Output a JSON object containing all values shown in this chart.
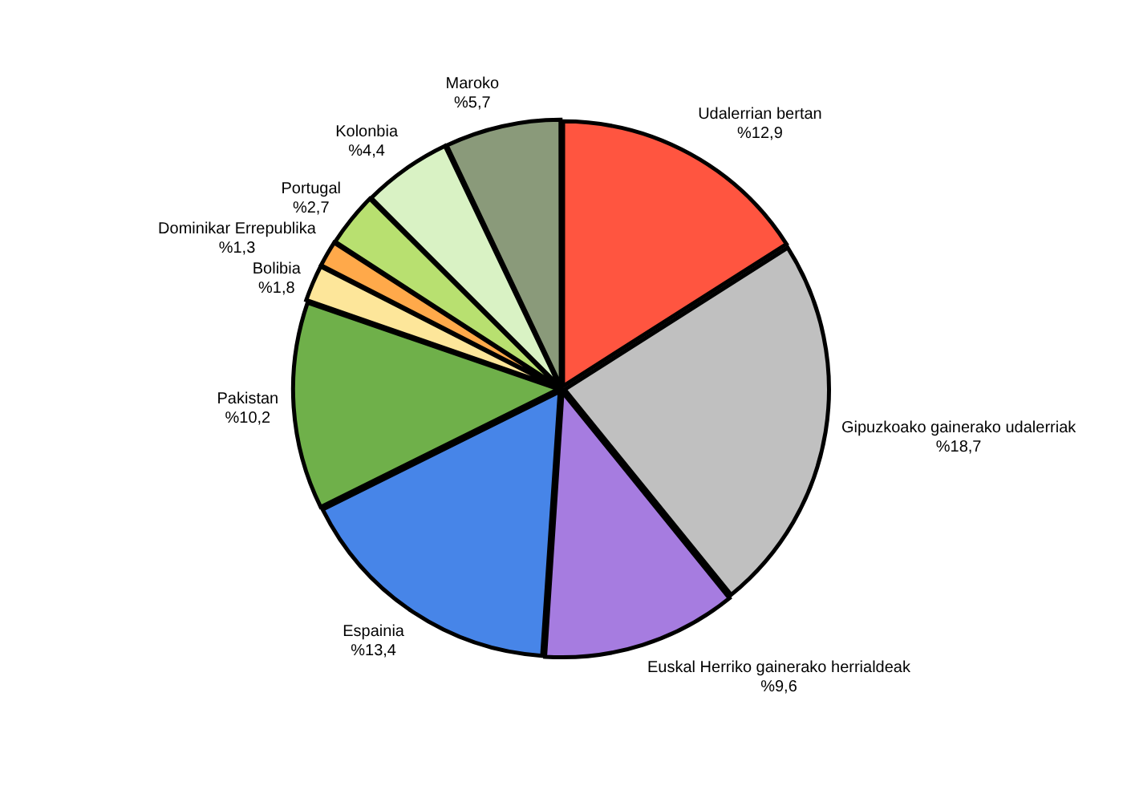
{
  "chart_data": {
    "type": "pie",
    "categories": [
      "Udalerrian bertan",
      "Gipuzkoako gainerako udalerriak",
      "Euskal Herriko gainerako herrialdeak",
      "Espainia",
      "Pakistan",
      "Bolibia",
      "Dominikar Errepublika",
      "Portugal",
      "Kolonbia",
      "Maroko"
    ],
    "values": [
      12.9,
      18.7,
      9.6,
      13.4,
      10.2,
      1.8,
      1.3,
      2.7,
      4.4,
      5.7
    ],
    "value_labels": [
      "%12,9",
      "%18,7",
      "%9,6",
      "%13,4",
      "%10,2",
      "%1,8",
      "%1,3",
      "%2,7",
      "%4,4",
      "%5,7"
    ],
    "colors": [
      "#ff5540",
      "#c0c0c0",
      "#a67ce0",
      "#4785e8",
      "#6fb04a",
      "#fde69a",
      "#ffa94a",
      "#b8e070",
      "#d9f2c4",
      "#8a9a7a"
    ],
    "legend": false
  }
}
